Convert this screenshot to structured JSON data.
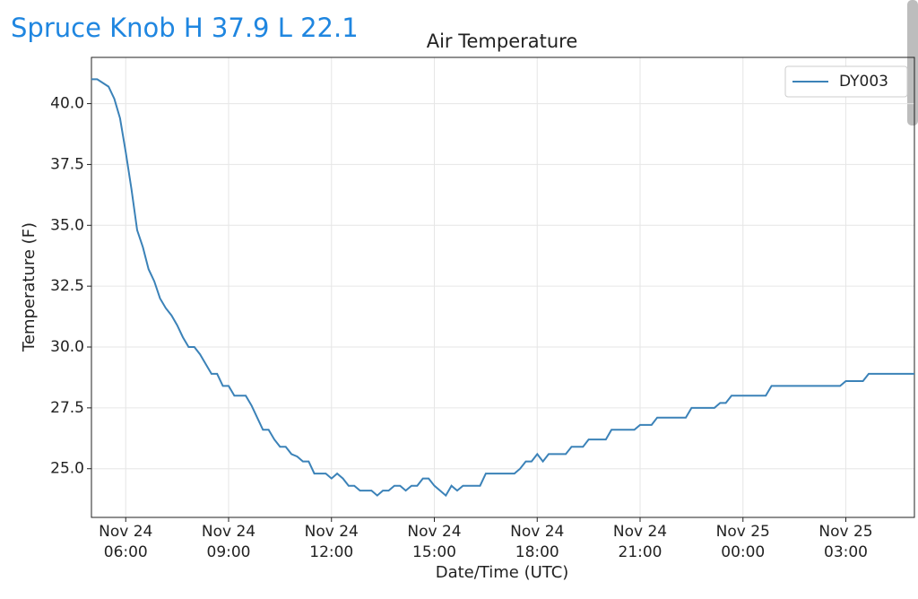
{
  "header": {
    "title": "Spruce Knob H 37.9 L 22.1"
  },
  "chart_data": {
    "type": "line",
    "title": "Air Temperature",
    "x_label": "Date/Time (UTC)",
    "y_label": "Temperature (F)",
    "x": [
      "Nov 24 05:00",
      "Nov 24 05:10",
      "Nov 24 05:30",
      "Nov 24 05:40",
      "Nov 24 05:50",
      "Nov 24 06:00",
      "Nov 24 06:10",
      "Nov 24 06:20",
      "Nov 24 06:30",
      "Nov 24 06:40",
      "Nov 24 06:50",
      "Nov 24 07:00",
      "Nov 24 07:10",
      "Nov 24 07:20",
      "Nov 24 07:30",
      "Nov 24 07:40",
      "Nov 24 07:50",
      "Nov 24 08:00",
      "Nov 24 08:10",
      "Nov 24 08:20",
      "Nov 24 08:30",
      "Nov 24 08:40",
      "Nov 24 08:50",
      "Nov 24 09:00",
      "Nov 24 09:10",
      "Nov 24 09:30",
      "Nov 24 09:40",
      "Nov 24 09:50",
      "Nov 24 10:00",
      "Nov 24 10:10",
      "Nov 24 10:20",
      "Nov 24 10:30",
      "Nov 24 10:40",
      "Nov 24 10:50",
      "Nov 24 11:00",
      "Nov 24 11:10",
      "Nov 24 11:20",
      "Nov 24 11:30",
      "Nov 24 11:50",
      "Nov 24 12:00",
      "Nov 24 12:10",
      "Nov 24 12:20",
      "Nov 24 12:30",
      "Nov 24 12:40",
      "Nov 24 12:50",
      "Nov 24 13:10",
      "Nov 24 13:20",
      "Nov 24 13:30",
      "Nov 24 13:40",
      "Nov 24 13:50",
      "Nov 24 14:00",
      "Nov 24 14:10",
      "Nov 24 14:20",
      "Nov 24 14:30",
      "Nov 24 14:40",
      "Nov 24 14:50",
      "Nov 24 15:00",
      "Nov 24 15:10",
      "Nov 24 15:20",
      "Nov 24 15:30",
      "Nov 24 15:40",
      "Nov 24 15:50",
      "Nov 24 16:20",
      "Nov 24 16:30",
      "Nov 24 17:20",
      "Nov 24 17:30",
      "Nov 24 17:40",
      "Nov 24 17:50",
      "Nov 24 18:00",
      "Nov 24 18:10",
      "Nov 24 18:20",
      "Nov 24 18:50",
      "Nov 24 19:00",
      "Nov 24 19:20",
      "Nov 24 19:30",
      "Nov 24 20:00",
      "Nov 24 20:10",
      "Nov 24 20:50",
      "Nov 24 21:00",
      "Nov 24 21:20",
      "Nov 24 21:30",
      "Nov 24 22:20",
      "Nov 24 22:30",
      "Nov 24 23:10",
      "Nov 24 23:20",
      "Nov 24 23:30",
      "Nov 24 23:40",
      "Nov 25 00:40",
      "Nov 25 00:50",
      "Nov 25 02:50",
      "Nov 25 03:00",
      "Nov 25 03:30",
      "Nov 25 03:40",
      "Nov 25 05:00"
    ],
    "series": [
      {
        "name": "DY003",
        "color": "#3b82b8",
        "values": [
          41.0,
          41.0,
          40.7,
          40.2,
          39.4,
          38.0,
          36.5,
          34.8,
          34.1,
          33.2,
          32.7,
          32.0,
          31.6,
          31.3,
          30.9,
          30.4,
          30.0,
          30.0,
          29.7,
          29.3,
          28.9,
          28.9,
          28.4,
          28.4,
          28.0,
          28.0,
          27.6,
          27.1,
          26.6,
          26.6,
          26.2,
          25.9,
          25.9,
          25.6,
          25.5,
          25.3,
          25.3,
          24.8,
          24.8,
          24.6,
          24.8,
          24.6,
          24.3,
          24.3,
          24.1,
          24.1,
          23.9,
          24.1,
          24.1,
          24.3,
          24.3,
          24.1,
          24.3,
          24.3,
          24.6,
          24.6,
          24.3,
          24.1,
          23.9,
          24.3,
          24.1,
          24.3,
          24.3,
          24.8,
          24.8,
          25.0,
          25.3,
          25.3,
          25.6,
          25.3,
          25.6,
          25.6,
          25.9,
          25.9,
          26.2,
          26.2,
          26.6,
          26.6,
          26.8,
          26.8,
          27.1,
          27.1,
          27.5,
          27.5,
          27.7,
          27.7,
          28.0,
          28.0,
          28.4,
          28.4,
          28.6,
          28.6,
          28.9,
          28.9
        ]
      }
    ],
    "xlim": [
      "Nov 24 05:00",
      "Nov 25 05:00"
    ],
    "xticks": [
      {
        "value": "Nov 24 06:00",
        "label": "Nov 24\n06:00"
      },
      {
        "value": "Nov 24 09:00",
        "label": "Nov 24\n09:00"
      },
      {
        "value": "Nov 24 12:00",
        "label": "Nov 24\n12:00"
      },
      {
        "value": "Nov 24 15:00",
        "label": "Nov 24\n15:00"
      },
      {
        "value": "Nov 24 18:00",
        "label": "Nov 24\n18:00"
      },
      {
        "value": "Nov 24 21:00",
        "label": "Nov 24\n21:00"
      },
      {
        "value": "Nov 25 00:00",
        "label": "Nov 25\n00:00"
      },
      {
        "value": "Nov 25 03:00",
        "label": "Nov 25\n03:00"
      }
    ],
    "ylim": [
      23.0,
      41.9
    ],
    "yticks": [
      {
        "value": 25,
        "label": "25.0"
      },
      {
        "value": 27.5,
        "label": "27.5"
      },
      {
        "value": 30,
        "label": "30.0"
      },
      {
        "value": 32.5,
        "label": "32.5"
      },
      {
        "value": 35,
        "label": "35.0"
      },
      {
        "value": 37.5,
        "label": "37.5"
      },
      {
        "value": 40,
        "label": "40.0"
      }
    ],
    "grid": true,
    "legend": "upper right"
  }
}
